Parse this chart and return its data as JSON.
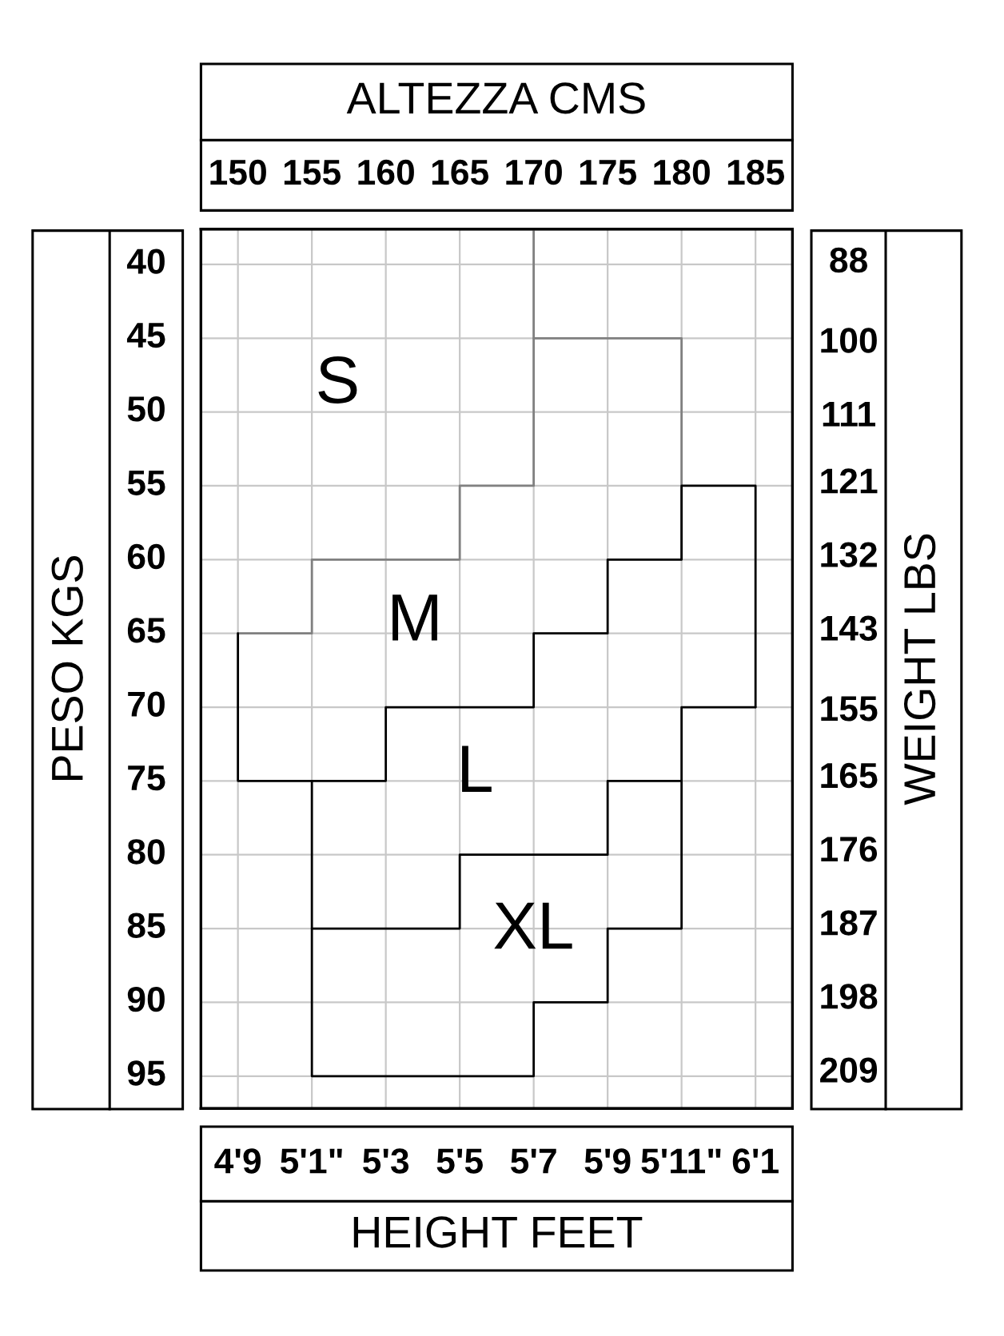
{
  "chart_data": {
    "type": "line",
    "categories": [
      "4'9",
      "5'1\"",
      "5'3",
      "5'5",
      "5'7",
      "5'9",
      "5'11\"",
      "6'1"
    ],
    "xlabel": "HEIGHT FEET",
    "x2label": "ALTEZZA CMS",
    "ylabel": "PESO KGS",
    "y2label": "WEIGHT LBS",
    "x2lim": [
      147.5,
      187.5
    ],
    "x2ticks": [
      150,
      155,
      160,
      165,
      170,
      175,
      180,
      185
    ],
    "ylim": [
      97.2,
      37.6
    ],
    "yticks": [
      40,
      45,
      50,
      55,
      60,
      65,
      70,
      75,
      80,
      85,
      90,
      95
    ],
    "y2lim": [
      214.3,
      82.9
    ],
    "y2ticks": [
      88,
      100,
      111,
      121,
      132,
      143,
      155,
      165,
      176,
      187,
      198,
      209
    ],
    "grid": true,
    "series": [
      {
        "color": "#808080",
        "x": [
          "4'9",
          "5'1\"",
          "5'1\"",
          "5'5",
          "5'5",
          "5'7",
          "5'7"
        ],
        "values": [
          65,
          65,
          60,
          60,
          55,
          55,
          37.6
        ]
      },
      {
        "color": "#808080",
        "x": [
          "5'7",
          "5'11\"",
          "5'11\""
        ],
        "values": [
          45,
          45,
          60
        ]
      },
      {
        "color": "#000000",
        "x": [
          "4'9",
          "4'9",
          "5'3",
          "5'3",
          "5'7",
          "5'7",
          "5'9",
          "5'9",
          "5'11\"",
          "5'11\"",
          "6'1",
          "6'1"
        ],
        "values": [
          65,
          75,
          75,
          70,
          70,
          65,
          65,
          60,
          60,
          55,
          55,
          70
        ]
      },
      {
        "color": "#000000",
        "x": [
          "5'1\"",
          "5'1\"",
          "5'5",
          "5'5",
          "5'9",
          "5'9",
          "5'11\"",
          "5'11\"",
          "6'1"
        ],
        "values": [
          75,
          85,
          85,
          80,
          80,
          75,
          75,
          70,
          70
        ]
      },
      {
        "color": "#000000",
        "x": [
          "5'1\"",
          "5'1\"",
          "5'7",
          "5'7",
          "5'9",
          "5'9",
          "5'11\"",
          "5'11\""
        ],
        "values": [
          85,
          95,
          95,
          90,
          90,
          85,
          85,
          75
        ]
      }
    ],
    "annotations": [
      "S",
      "M",
      "L",
      "XL"
    ]
  }
}
